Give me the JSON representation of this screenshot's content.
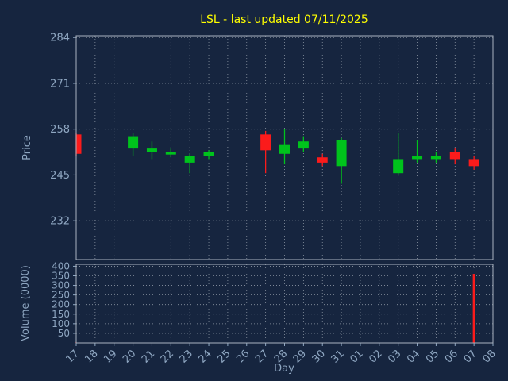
{
  "title": "LSL - last updated 07/11/2025",
  "colors": {
    "background": "#16253f",
    "title": "#ffff00",
    "axis_text": "#8fa7c2",
    "frame": "#aab4c0",
    "grid": "#c0c8d0",
    "up": "#00c31c",
    "down": "#fb1b1b"
  },
  "chart_data": {
    "type": "candlestick",
    "title": "LSL - last updated 07/11/2025",
    "xlabel": "Day",
    "grid": "dotted",
    "legend": "none",
    "price_axis": {
      "label": "Price",
      "ticks": [
        232,
        245,
        258,
        271,
        284
      ],
      "ylim": [
        221,
        284.5
      ]
    },
    "volume_axis": {
      "label": "Volume (0000)",
      "ticks": [
        50,
        100,
        150,
        200,
        250,
        300,
        350,
        400
      ],
      "ylim": [
        0,
        410
      ]
    },
    "x_ticks": [
      "17",
      "18",
      "19",
      "20",
      "21",
      "22",
      "23",
      "24",
      "25",
      "26",
      "27",
      "28",
      "29",
      "30",
      "31",
      "01",
      "02",
      "03",
      "04",
      "05",
      "06",
      "07",
      "08"
    ],
    "candles": [
      {
        "day": "17",
        "x": 0,
        "open": 256.5,
        "high": 257.0,
        "low": 250.5,
        "close": 251.0,
        "volume": 2
      },
      {
        "day": "20",
        "x": 3,
        "open": 252.5,
        "high": 257.0,
        "low": 250.5,
        "close": 256.0,
        "volume": 2
      },
      {
        "day": "21",
        "x": 4,
        "open": 251.5,
        "high": 254.5,
        "low": 249.5,
        "close": 252.5,
        "volume": 1
      },
      {
        "day": "22",
        "x": 5,
        "open": 250.8,
        "high": 252.5,
        "low": 250.0,
        "close": 251.5,
        "volume": 1
      },
      {
        "day": "23",
        "x": 6,
        "open": 248.5,
        "high": 251.0,
        "low": 245.5,
        "close": 250.5,
        "volume": 1
      },
      {
        "day": "24",
        "x": 7,
        "open": 250.5,
        "high": 252.0,
        "low": 249.5,
        "close": 251.5,
        "volume": 1
      },
      {
        "day": "27",
        "x": 10,
        "open": 256.5,
        "high": 257.5,
        "low": 245.5,
        "close": 252.0,
        "volume": 2
      },
      {
        "day": "28",
        "x": 11,
        "open": 251.0,
        "high": 258.0,
        "low": 248.0,
        "close": 253.5,
        "volume": 1
      },
      {
        "day": "29",
        "x": 12,
        "open": 252.5,
        "high": 256.0,
        "low": 251.5,
        "close": 254.5,
        "volume": 1
      },
      {
        "day": "30",
        "x": 13,
        "open": 250.0,
        "high": 251.0,
        "low": 247.5,
        "close": 248.5,
        "volume": 1
      },
      {
        "day": "31",
        "x": 14,
        "open": 247.5,
        "high": 255.5,
        "low": 242.5,
        "close": 255.0,
        "volume": 2
      },
      {
        "day": "03",
        "x": 17,
        "open": 245.5,
        "high": 257.0,
        "low": 245.0,
        "close": 249.5,
        "volume": 1
      },
      {
        "day": "04",
        "x": 18,
        "open": 249.5,
        "high": 255.0,
        "low": 248.5,
        "close": 250.5,
        "volume": 1
      },
      {
        "day": "05",
        "x": 19,
        "open": 249.5,
        "high": 251.5,
        "low": 248.5,
        "close": 250.5,
        "volume": 1
      },
      {
        "day": "06",
        "x": 20,
        "open": 251.5,
        "high": 252.5,
        "low": 248.0,
        "close": 249.5,
        "volume": 1
      },
      {
        "day": "07",
        "x": 21,
        "open": 249.5,
        "high": 250.5,
        "low": 246.5,
        "close": 247.5,
        "volume": 360
      }
    ]
  }
}
